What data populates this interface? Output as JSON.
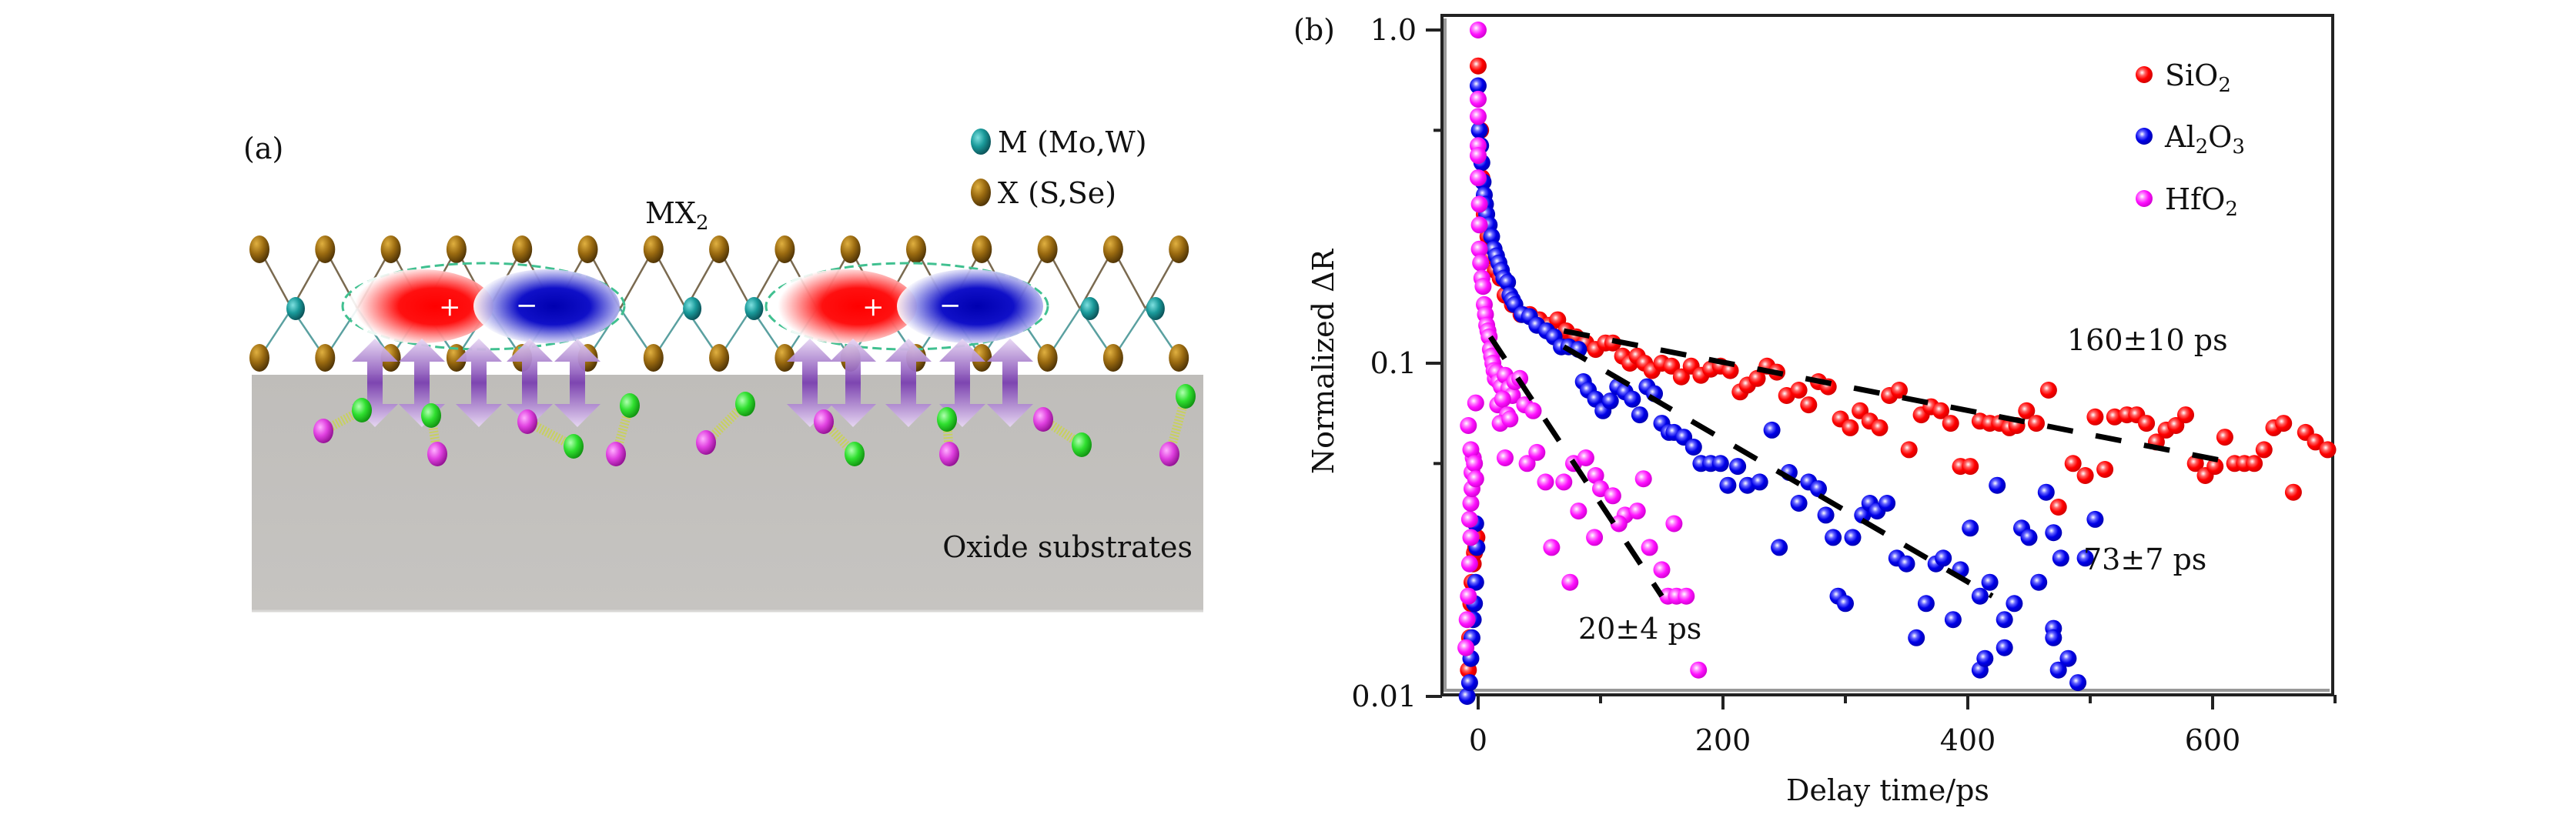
{
  "panel_a": {
    "label": "(a)",
    "title": "MX",
    "title_sub": "2",
    "legend": [
      {
        "name": "M",
        "text": "M (Mo,W)",
        "color": "#1f9a9a"
      },
      {
        "name": "X",
        "text": "X (S,Se)",
        "color": "#9a6a10"
      }
    ],
    "substrate_label": "Oxide substrates",
    "exciton_plus": "+",
    "exciton_minus": "−",
    "colors": {
      "substrate": "#c4c2bf",
      "hole": "#ff0000",
      "electron": "#0000cc",
      "arrow": "#7a3fb0",
      "dipole_pink": "#e040e0",
      "dipole_green": "#30e030",
      "spring": "#c8d060",
      "exciton_ring": "#40c090"
    }
  },
  "panel_b": {
    "label": "(b)",
    "annotations": [
      {
        "id": "sio2-lifetime",
        "text": "160±10 ps"
      },
      {
        "id": "al2o3-lifetime",
        "text": "73±7 ps"
      },
      {
        "id": "hfo2-lifetime",
        "text": "20±4 ps"
      }
    ]
  },
  "chart_data": {
    "type": "scatter",
    "title": "",
    "xlabel": "Delay time/ps",
    "ylabel": "Normalized ΔR",
    "xlim": [
      -30,
      700
    ],
    "ylim": [
      0.01,
      1.0
    ],
    "yscale": "log",
    "xticks": [
      0,
      200,
      400,
      600
    ],
    "xtick_labels": [
      "0",
      "200",
      "400",
      "600"
    ],
    "xminor_ticks": [
      100,
      300,
      500,
      700
    ],
    "yticks": [
      1.0,
      0.1,
      0.01
    ],
    "ytick_labels": [
      "1.0",
      "0.1",
      "0.01"
    ],
    "yminor_ticks": [
      0.5,
      0.05
    ],
    "grid": false,
    "legend_position": "top-right",
    "series": [
      {
        "name": "SiO2",
        "label_main": "SiO",
        "label_sub": "2",
        "color": "#ff1010",
        "points": [
          [
            -8,
            0.012
          ],
          [
            -7,
            0.015
          ],
          [
            -6,
            0.019
          ],
          [
            -5,
            0.022
          ],
          [
            -4,
            0.025
          ],
          [
            -3,
            0.027
          ],
          [
            -2,
            0.028
          ],
          [
            -1,
            0.03
          ],
          [
            0,
            0.78
          ],
          [
            2,
            0.5
          ],
          [
            3,
            0.36
          ],
          [
            5,
            0.28
          ],
          [
            8,
            0.24
          ],
          [
            10,
            0.21
          ],
          [
            14,
            0.19
          ],
          [
            18,
            0.18
          ],
          [
            22,
            0.16
          ],
          [
            28,
            0.15
          ],
          [
            35,
            0.14
          ],
          [
            42,
            0.14
          ],
          [
            50,
            0.135
          ],
          [
            58,
            0.13
          ],
          [
            65,
            0.135
          ],
          [
            72,
            0.125
          ],
          [
            80,
            0.12
          ],
          [
            88,
            0.115
          ],
          [
            96,
            0.11
          ],
          [
            104,
            0.115
          ],
          [
            110,
            0.115
          ],
          [
            118,
            0.105
          ],
          [
            124,
            0.1
          ],
          [
            130,
            0.105
          ],
          [
            136,
            0.1
          ],
          [
            142,
            0.095
          ],
          [
            150,
            0.1
          ],
          [
            158,
            0.098
          ],
          [
            166,
            0.091
          ],
          [
            174,
            0.098
          ],
          [
            182,
            0.092
          ],
          [
            190,
            0.096
          ],
          [
            198,
            0.098
          ],
          [
            206,
            0.095
          ],
          [
            214,
            0.082
          ],
          [
            220,
            0.086
          ],
          [
            228,
            0.09
          ],
          [
            236,
            0.098
          ],
          [
            244,
            0.094
          ],
          [
            252,
            0.08
          ],
          [
            262,
            0.083
          ],
          [
            270,
            0.075
          ],
          [
            278,
            0.088
          ],
          [
            286,
            0.085
          ],
          [
            296,
            0.068
          ],
          [
            304,
            0.064
          ],
          [
            312,
            0.072
          ],
          [
            320,
            0.067
          ],
          [
            328,
            0.064
          ],
          [
            336,
            0.08
          ],
          [
            344,
            0.083
          ],
          [
            352,
            0.055
          ],
          [
            362,
            0.07
          ],
          [
            370,
            0.074
          ],
          [
            378,
            0.072
          ],
          [
            386,
            0.066
          ],
          [
            394,
            0.049
          ],
          [
            402,
            0.049
          ],
          [
            410,
            0.067
          ],
          [
            418,
            0.066
          ],
          [
            426,
            0.066
          ],
          [
            434,
            0.064
          ],
          [
            440,
            0.065
          ],
          [
            448,
            0.072
          ],
          [
            456,
            0.066
          ],
          [
            466,
            0.083
          ],
          [
            474,
            0.037
          ],
          [
            486,
            0.05
          ],
          [
            496,
            0.046
          ],
          [
            504,
            0.069
          ],
          [
            512,
            0.048
          ],
          [
            520,
            0.069
          ],
          [
            530,
            0.07
          ],
          [
            538,
            0.07
          ],
          [
            546,
            0.066
          ],
          [
            554,
            0.058
          ],
          [
            562,
            0.063
          ],
          [
            570,
            0.065
          ],
          [
            578,
            0.07
          ],
          [
            586,
            0.05
          ],
          [
            594,
            0.046
          ],
          [
            602,
            0.049
          ],
          [
            610,
            0.06
          ],
          [
            618,
            0.05
          ],
          [
            626,
            0.05
          ],
          [
            634,
            0.05
          ],
          [
            642,
            0.055
          ],
          [
            650,
            0.064
          ],
          [
            658,
            0.066
          ],
          [
            666,
            0.041
          ],
          [
            676,
            0.062
          ],
          [
            684,
            0.058
          ],
          [
            694,
            0.055
          ]
        ]
      },
      {
        "name": "Al2O3",
        "label_main": "Al",
        "label_sub": "2",
        "label_main2": "O",
        "label_sub2": "3",
        "color": "#1010e0",
        "points": [
          [
            -9,
            0.01
          ],
          [
            -7,
            0.011
          ],
          [
            -6,
            0.013
          ],
          [
            -5,
            0.015
          ],
          [
            -4,
            0.017
          ],
          [
            -3,
            0.019
          ],
          [
            -2,
            0.022
          ],
          [
            -1,
            0.028
          ],
          [
            -2,
            0.033
          ],
          [
            0,
            0.68
          ],
          [
            1,
            0.5
          ],
          [
            2,
            0.45
          ],
          [
            3,
            0.4
          ],
          [
            4,
            0.35
          ],
          [
            5,
            0.32
          ],
          [
            6,
            0.3
          ],
          [
            7,
            0.28
          ],
          [
            9,
            0.26
          ],
          [
            11,
            0.24
          ],
          [
            13,
            0.22
          ],
          [
            15,
            0.21
          ],
          [
            17,
            0.2
          ],
          [
            19,
            0.19
          ],
          [
            21,
            0.18
          ],
          [
            24,
            0.175
          ],
          [
            26,
            0.16
          ],
          [
            28,
            0.155
          ],
          [
            30,
            0.15
          ],
          [
            36,
            0.14
          ],
          [
            42,
            0.138
          ],
          [
            48,
            0.13
          ],
          [
            56,
            0.125
          ],
          [
            62,
            0.12
          ],
          [
            68,
            0.112
          ],
          [
            74,
            0.112
          ],
          [
            82,
            0.11
          ],
          [
            86,
            0.088
          ],
          [
            90,
            0.083
          ],
          [
            96,
            0.078
          ],
          [
            102,
            0.072
          ],
          [
            108,
            0.077
          ],
          [
            114,
            0.085
          ],
          [
            120,
            0.082
          ],
          [
            126,
            0.078
          ],
          [
            132,
            0.07
          ],
          [
            138,
            0.085
          ],
          [
            144,
            0.081
          ],
          [
            150,
            0.066
          ],
          [
            156,
            0.062
          ],
          [
            160,
            0.062
          ],
          [
            168,
            0.06
          ],
          [
            176,
            0.056
          ],
          [
            182,
            0.05
          ],
          [
            190,
            0.05
          ],
          [
            198,
            0.05
          ],
          [
            204,
            0.043
          ],
          [
            212,
            0.049
          ],
          [
            220,
            0.043
          ],
          [
            230,
            0.044
          ],
          [
            240,
            0.063
          ],
          [
            246,
            0.028
          ],
          [
            254,
            0.047
          ],
          [
            262,
            0.038
          ],
          [
            270,
            0.044
          ],
          [
            278,
            0.042
          ],
          [
            284,
            0.035
          ],
          [
            290,
            0.03
          ],
          [
            294,
            0.02
          ],
          [
            300,
            0.019
          ],
          [
            306,
            0.03
          ],
          [
            314,
            0.035
          ],
          [
            320,
            0.038
          ],
          [
            326,
            0.036
          ],
          [
            334,
            0.038
          ],
          [
            342,
            0.026
          ],
          [
            350,
            0.025
          ],
          [
            358,
            0.015
          ],
          [
            366,
            0.019
          ],
          [
            374,
            0.025
          ],
          [
            380,
            0.026
          ],
          [
            388,
            0.017
          ],
          [
            394,
            0.024
          ],
          [
            402,
            0.032
          ],
          [
            410,
            0.02
          ],
          [
            418,
            0.022
          ],
          [
            424,
            0.043
          ],
          [
            430,
            0.017
          ],
          [
            438,
            0.019
          ],
          [
            444,
            0.032
          ],
          [
            450,
            0.03
          ],
          [
            458,
            0.022
          ],
          [
            464,
            0.041
          ],
          [
            470,
            0.016
          ],
          [
            476,
            0.026
          ],
          [
            482,
            0.013
          ],
          [
            490,
            0.011
          ],
          [
            496,
            0.026
          ],
          [
            504,
            0.034
          ],
          [
            410,
            0.012
          ],
          [
            414,
            0.013
          ],
          [
            430,
            0.014
          ],
          [
            470,
            0.015
          ],
          [
            474,
            0.012
          ],
          [
            470,
            0.031
          ]
        ]
      },
      {
        "name": "HfO2",
        "label_main": "HfO",
        "label_sub": "2",
        "color": "#ff20ff",
        "points": [
          [
            -10,
            0.014
          ],
          [
            -9,
            0.017
          ],
          [
            -8,
            0.02
          ],
          [
            -7,
            0.025
          ],
          [
            -6,
            0.03
          ],
          [
            -7,
            0.034
          ],
          [
            -6,
            0.038
          ],
          [
            -5,
            0.042
          ],
          [
            -5,
            0.047
          ],
          [
            -4,
            0.052
          ],
          [
            -6,
            0.055
          ],
          [
            -8,
            0.065
          ],
          [
            -3,
            0.05
          ],
          [
            -2,
            0.045
          ],
          [
            0,
            1.0
          ],
          [
            0,
            0.62
          ],
          [
            0,
            0.55
          ],
          [
            0,
            0.45
          ],
          [
            0,
            0.42
          ],
          [
            0,
            0.36
          ],
          [
            1,
            0.3
          ],
          [
            1,
            0.26
          ],
          [
            1,
            0.22
          ],
          [
            2,
            0.2
          ],
          [
            3,
            0.18
          ],
          [
            4,
            0.17
          ],
          [
            5,
            0.15
          ],
          [
            6,
            0.14
          ],
          [
            7,
            0.13
          ],
          [
            8,
            0.125
          ],
          [
            9,
            0.12
          ],
          [
            10,
            0.11
          ],
          [
            11,
            0.105
          ],
          [
            12,
            0.1
          ],
          [
            13,
            0.095
          ],
          [
            14,
            0.09
          ],
          [
            15,
            0.094
          ],
          [
            17,
            0.088
          ],
          [
            19,
            0.085
          ],
          [
            22,
            0.092
          ],
          [
            25,
            0.084
          ],
          [
            28,
            0.08
          ],
          [
            30,
            0.088
          ],
          [
            34,
            0.09
          ],
          [
            38,
            0.075
          ],
          [
            16,
            0.075
          ],
          [
            20,
            0.078
          ],
          [
            24,
            0.07
          ],
          [
            18,
            0.066
          ],
          [
            26,
            0.068
          ],
          [
            45,
            0.072
          ],
          [
            -2,
            0.076
          ],
          [
            22,
            0.052
          ],
          [
            40,
            0.05
          ],
          [
            48,
            0.054
          ],
          [
            55,
            0.044
          ],
          [
            70,
            0.044
          ],
          [
            78,
            0.05
          ],
          [
            88,
            0.052
          ],
          [
            96,
            0.046
          ],
          [
            100,
            0.042
          ],
          [
            110,
            0.04
          ],
          [
            95,
            0.03
          ],
          [
            82,
            0.036
          ],
          [
            120,
            0.035
          ],
          [
            130,
            0.036
          ],
          [
            140,
            0.028
          ],
          [
            150,
            0.024
          ],
          [
            155,
            0.02
          ],
          [
            162,
            0.02
          ],
          [
            170,
            0.02
          ],
          [
            180,
            0.012
          ],
          [
            60,
            0.028
          ],
          [
            75,
            0.022
          ],
          [
            115,
            0.033
          ],
          [
            135,
            0.045
          ],
          [
            160,
            0.033
          ]
        ]
      }
    ],
    "fits": [
      {
        "series": "SiO2",
        "tau_ps": 160,
        "label": "160±10 ps",
        "t_start": 70,
        "t_end": 620,
        "y_start": 0.125,
        "y_end": 0.05
      },
      {
        "series": "Al2O3",
        "tau_ps": 73,
        "label": "73±7 ps",
        "t_start": 70,
        "t_end": 420,
        "y_start": 0.112,
        "y_end": 0.02
      },
      {
        "series": "HfO2",
        "tau_ps": 20,
        "label": "20±4 ps",
        "t_start": 10,
        "t_end": 150,
        "y_start": 0.12,
        "y_end": 0.02
      }
    ]
  }
}
